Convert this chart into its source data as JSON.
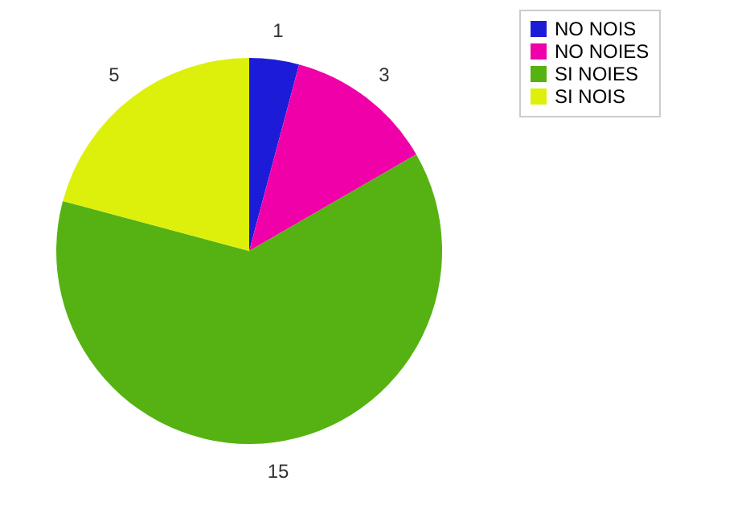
{
  "chart_data": {
    "type": "pie",
    "categories": [
      "NO NOIS",
      "NO NOIES",
      "SI NOIES",
      "SI NOIS"
    ],
    "values": [
      1,
      3,
      15,
      5
    ],
    "colors": [
      "#1c1cd8",
      "#f000a8",
      "#55b212",
      "#dcf00c"
    ],
    "data_labels": true,
    "legend": "top right"
  }
}
